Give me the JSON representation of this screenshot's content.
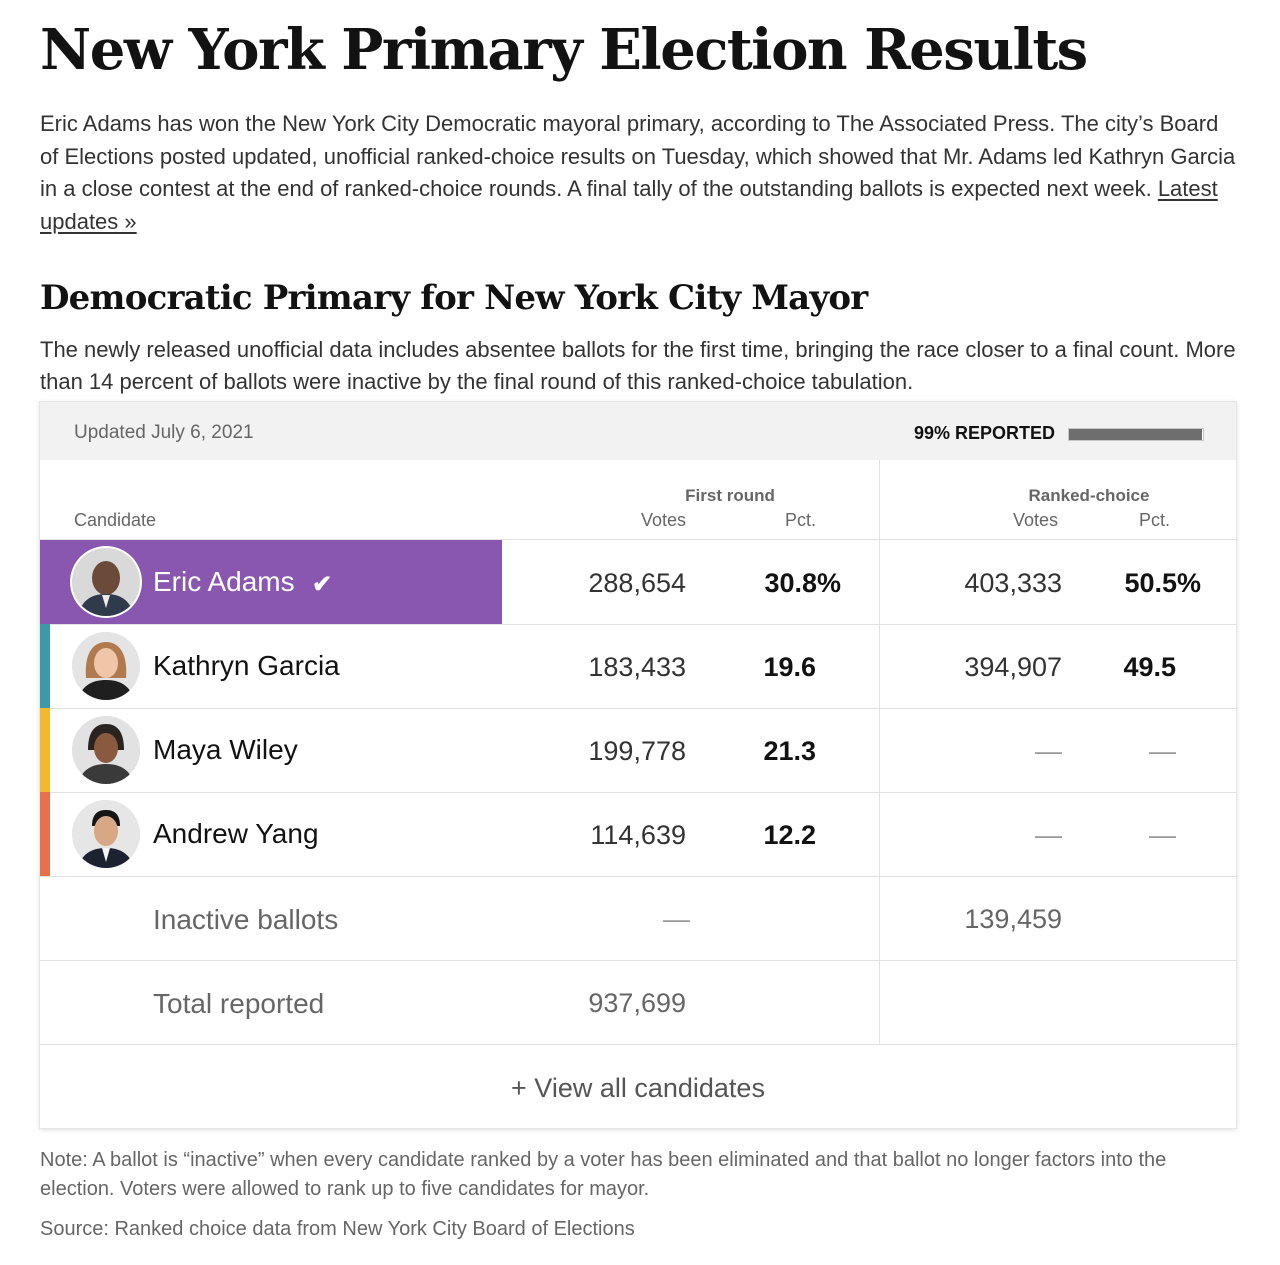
{
  "article": {
    "headline": "New York Primary Election Results",
    "dek": "Eric Adams has won the New York City Democratic mayoral primary, according to The Associated Press. The city’s Board of Elections posted updated, unofficial ranked-choice results on Tuesday, which showed that Mr. Adams led Kathryn Garcia in a close contest at the end of ranked-choice rounds. A final tally of the outstanding ballots is expected next week.",
    "latest_link": "Latest updates »",
    "subhead": "Democratic Primary for New York City Mayor",
    "subdek": "The newly released unofficial data includes absentee ballots for the first time, bringing the race closer to a final count. More than 14 percent of ballots were inactive by the final round of this ranked-choice tabulation."
  },
  "results": {
    "updated": "Updated July 6, 2021",
    "reported_label": "99% REPORTED",
    "reported_fraction": 0.99,
    "headers": {
      "candidate": "Candidate",
      "first_round": "First round",
      "ranked_choice": "Ranked-choice",
      "votes": "Votes",
      "pct": "Pct."
    },
    "candidates": [
      {
        "name": "Eric Adams",
        "first_votes": "288,654",
        "first_pct": "30.8%",
        "rc_votes": "403,333",
        "rc_pct": "50.5%",
        "winner": true,
        "color": "#8957b0",
        "check": "✔"
      },
      {
        "name": "Kathryn Garcia",
        "first_votes": "183,433",
        "first_pct": "19.6",
        "rc_votes": "394,907",
        "rc_pct": "49.5",
        "color": "#3a9aa8"
      },
      {
        "name": "Maya Wiley",
        "first_votes": "199,778",
        "first_pct": "21.3",
        "rc_votes": "—",
        "rc_pct": "—",
        "color": "#f3b82c"
      },
      {
        "name": "Andrew Yang",
        "first_votes": "114,639",
        "first_pct": "12.2",
        "rc_votes": "—",
        "rc_pct": "—",
        "color": "#e8714b"
      }
    ],
    "inactive": {
      "label": "Inactive ballots",
      "first_votes": "—",
      "rc_votes": "139,459"
    },
    "total": {
      "label": "Total reported",
      "first_votes": "937,699"
    },
    "view_all": "+ View all candidates"
  },
  "footer": {
    "note": "Note: A ballot is “inactive” when every candidate ranked by a voter has been eliminated and that ballot no longer factors into the election. Voters were allowed to rank up to five candidates for mayor.",
    "source": "Source: Ranked choice data from New York City Board of Elections"
  }
}
